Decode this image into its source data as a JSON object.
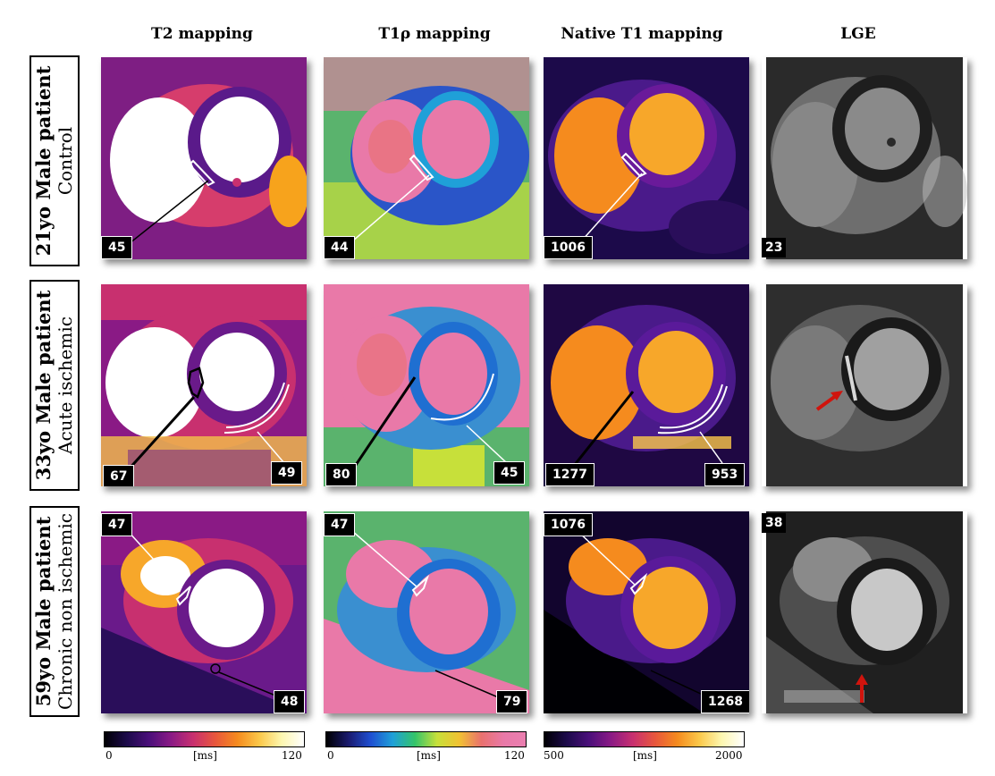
{
  "columns": [
    "T2 mapping",
    "T1ρ mapping",
    "Native T1 mapping",
    "LGE"
  ],
  "rows": [
    {
      "line1": "21yo Male patient",
      "line2": "Control"
    },
    {
      "line1": "33yo Male patient",
      "line2": "Acute ischemic"
    },
    {
      "line1": "59yo Male patient",
      "line2": "Chronic non ischemic"
    }
  ],
  "values": {
    "r1": {
      "t2": "45",
      "t1rho": "44",
      "t1": "1006",
      "lge": "23"
    },
    "r2": {
      "t2_a": "67",
      "t2_b": "49",
      "t1rho_a": "80",
      "t1rho_b": "45",
      "t1_a": "1277",
      "t1_b": "953"
    },
    "r3": {
      "t2_a": "47",
      "t2_b": "48",
      "t1rho_a": "47",
      "t1rho_b": "79",
      "t1_a": "1076",
      "t1_b": "1268",
      "lge": "38"
    }
  },
  "colorbars": [
    {
      "min": "0",
      "unit": "[ms]",
      "max": "120",
      "palette": "inferno"
    },
    {
      "min": "0",
      "unit": "[ms]",
      "max": "120",
      "palette": "rainbow"
    },
    {
      "min": "500",
      "unit": "[ms]",
      "max": "2000",
      "palette": "inferno"
    }
  ],
  "colors": {
    "inferno": [
      "#000004",
      "#1c0a4a",
      "#4a0f7a",
      "#8a1a85",
      "#c8306f",
      "#e8573c",
      "#f58b1e",
      "#fbc84a",
      "#fdf7b0",
      "#ffffff"
    ],
    "rainbow": [
      "#000000",
      "#1a1a6e",
      "#1f4fd1",
      "#1fa0d8",
      "#34c46a",
      "#c7e03a",
      "#f1c232",
      "#e9716e",
      "#e979a8",
      "#ea7fb0"
    ],
    "arrow": "#d0140d"
  }
}
